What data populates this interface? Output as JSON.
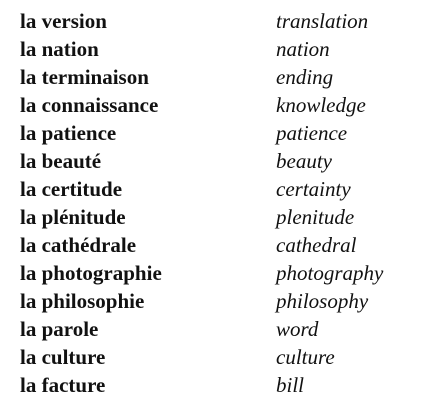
{
  "vocabulary": [
    {
      "french": "la version",
      "english": "translation"
    },
    {
      "french": "la nation",
      "english": "nation"
    },
    {
      "french": "la terminaison",
      "english": "ending"
    },
    {
      "french": "la connaissance",
      "english": "knowledge"
    },
    {
      "french": "la patience",
      "english": "patience"
    },
    {
      "french": "la beauté",
      "english": "beauty"
    },
    {
      "french": "la certitude",
      "english": "certainty"
    },
    {
      "french": "la plénitude",
      "english": "plenitude"
    },
    {
      "french": "la cathédrale",
      "english": "cathedral"
    },
    {
      "french": "la photographie",
      "english": "photography"
    },
    {
      "french": "la philosophie",
      "english": "philosophy"
    },
    {
      "french": "la parole",
      "english": "word"
    },
    {
      "french": "la culture",
      "english": "culture"
    },
    {
      "french": "la facture",
      "english": "bill"
    }
  ]
}
